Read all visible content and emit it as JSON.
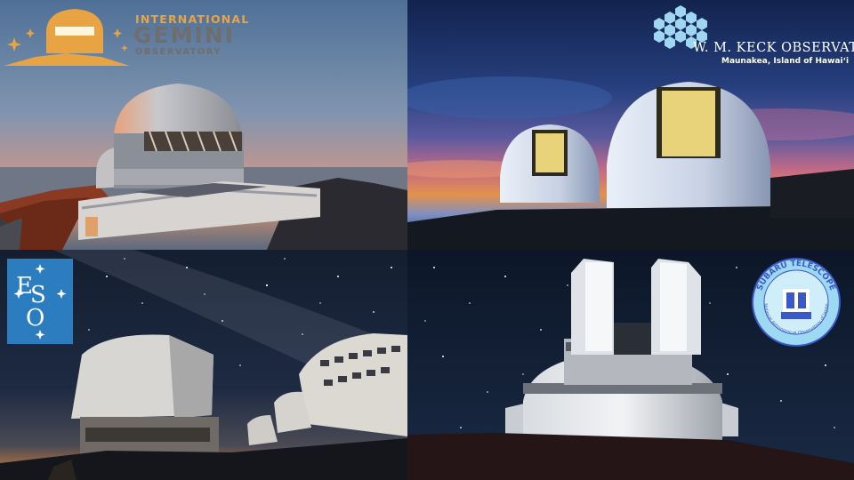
{
  "panels": {
    "gemini": {
      "logo_line1": "INTERNATIONAL",
      "logo_line2": "GEMINI",
      "logo_line3": "OBSERVATORY"
    },
    "keck": {
      "logo_name": "W. M. KECK OBSERVATORY",
      "logo_location": "Maunakea, Island of Hawaiʻi"
    },
    "eso": {
      "logo_letters": [
        "E",
        "S",
        "O"
      ]
    },
    "subaru": {
      "badge_top": "SUBARU TELESCOPE",
      "badge_bottom": "National Astronomical Observatory of Japan"
    }
  },
  "colors": {
    "gemini_orange": "#e8a442",
    "gemini_gray": "#6e6e6e",
    "eso_blue": "#2b7dc0",
    "keck_hex": "#9fd7f0",
    "subaru_blue": "#3a58c7"
  }
}
